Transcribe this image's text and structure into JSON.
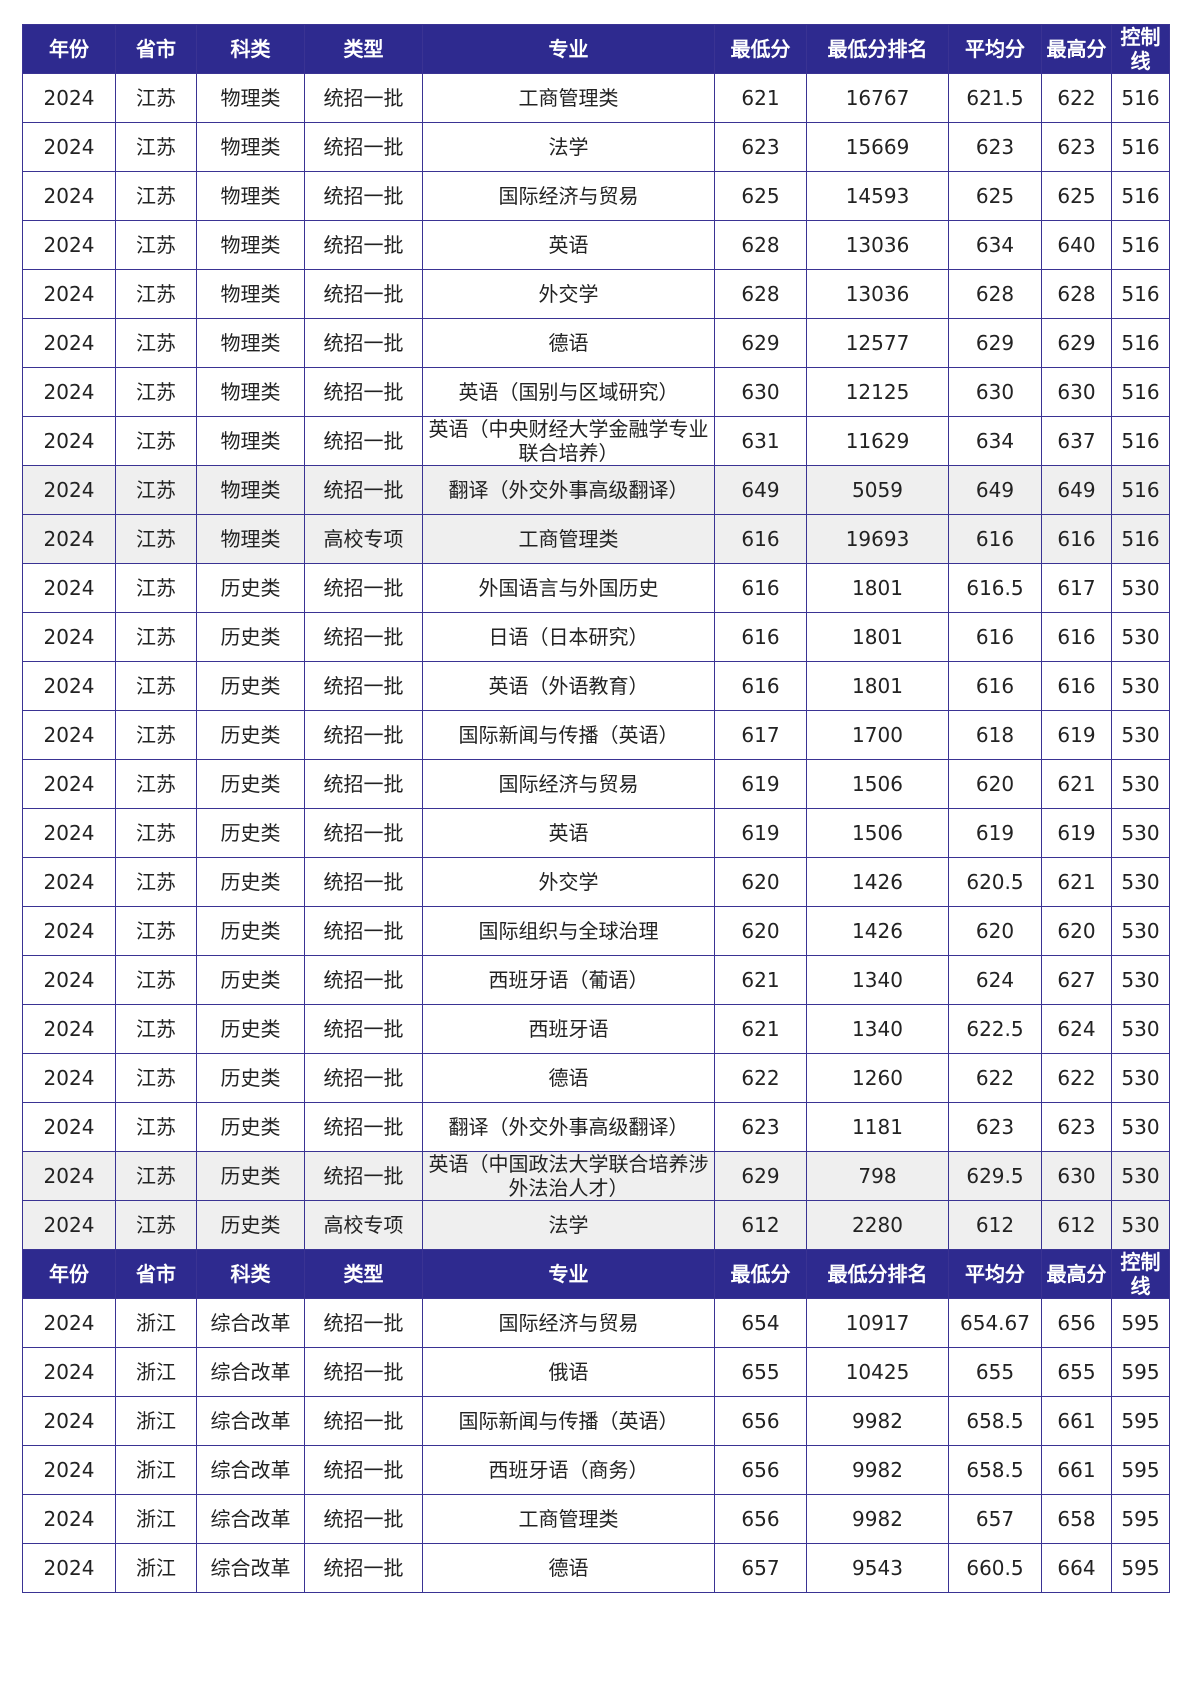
{
  "columns": [
    "年份",
    "省市",
    "科类",
    "类型",
    "专业",
    "最低分",
    "最低分排名",
    "平均分",
    "最高分",
    "控制线"
  ],
  "sections": [
    {
      "rows": [
        {
          "year": "2024",
          "province": "江苏",
          "subject": "物理类",
          "type": "统招一批",
          "major": "工商管理类",
          "min": "621",
          "rank": "16767",
          "avg": "621.5",
          "max": "622",
          "line": "516",
          "shaded": false
        },
        {
          "year": "2024",
          "province": "江苏",
          "subject": "物理类",
          "type": "统招一批",
          "major": "法学",
          "min": "623",
          "rank": "15669",
          "avg": "623",
          "max": "623",
          "line": "516",
          "shaded": false
        },
        {
          "year": "2024",
          "province": "江苏",
          "subject": "物理类",
          "type": "统招一批",
          "major": "国际经济与贸易",
          "min": "625",
          "rank": "14593",
          "avg": "625",
          "max": "625",
          "line": "516",
          "shaded": false
        },
        {
          "year": "2024",
          "province": "江苏",
          "subject": "物理类",
          "type": "统招一批",
          "major": "英语",
          "min": "628",
          "rank": "13036",
          "avg": "634",
          "max": "640",
          "line": "516",
          "shaded": false
        },
        {
          "year": "2024",
          "province": "江苏",
          "subject": "物理类",
          "type": "统招一批",
          "major": "外交学",
          "min": "628",
          "rank": "13036",
          "avg": "628",
          "max": "628",
          "line": "516",
          "shaded": false
        },
        {
          "year": "2024",
          "province": "江苏",
          "subject": "物理类",
          "type": "统招一批",
          "major": "德语",
          "min": "629",
          "rank": "12577",
          "avg": "629",
          "max": "629",
          "line": "516",
          "shaded": false
        },
        {
          "year": "2024",
          "province": "江苏",
          "subject": "物理类",
          "type": "统招一批",
          "major": "英语（国别与区域研究）",
          "min": "630",
          "rank": "12125",
          "avg": "630",
          "max": "630",
          "line": "516",
          "shaded": false
        },
        {
          "year": "2024",
          "province": "江苏",
          "subject": "物理类",
          "type": "统招一批",
          "major": "英语（中央财经大学金融学专业联合培养）",
          "min": "631",
          "rank": "11629",
          "avg": "634",
          "max": "637",
          "line": "516",
          "shaded": false
        },
        {
          "year": "2024",
          "province": "江苏",
          "subject": "物理类",
          "type": "统招一批",
          "major": "翻译（外交外事高级翻译）",
          "min": "649",
          "rank": "5059",
          "avg": "649",
          "max": "649",
          "line": "516",
          "shaded": true
        },
        {
          "year": "2024",
          "province": "江苏",
          "subject": "物理类",
          "type": "高校专项",
          "major": "工商管理类",
          "min": "616",
          "rank": "19693",
          "avg": "616",
          "max": "616",
          "line": "516",
          "shaded": true
        },
        {
          "year": "2024",
          "province": "江苏",
          "subject": "历史类",
          "type": "统招一批",
          "major": "外国语言与外国历史",
          "min": "616",
          "rank": "1801",
          "avg": "616.5",
          "max": "617",
          "line": "530",
          "shaded": false
        },
        {
          "year": "2024",
          "province": "江苏",
          "subject": "历史类",
          "type": "统招一批",
          "major": "日语（日本研究）",
          "min": "616",
          "rank": "1801",
          "avg": "616",
          "max": "616",
          "line": "530",
          "shaded": false
        },
        {
          "year": "2024",
          "province": "江苏",
          "subject": "历史类",
          "type": "统招一批",
          "major": "英语（外语教育）",
          "min": "616",
          "rank": "1801",
          "avg": "616",
          "max": "616",
          "line": "530",
          "shaded": false
        },
        {
          "year": "2024",
          "province": "江苏",
          "subject": "历史类",
          "type": "统招一批",
          "major": "国际新闻与传播（英语）",
          "min": "617",
          "rank": "1700",
          "avg": "618",
          "max": "619",
          "line": "530",
          "shaded": false
        },
        {
          "year": "2024",
          "province": "江苏",
          "subject": "历史类",
          "type": "统招一批",
          "major": "国际经济与贸易",
          "min": "619",
          "rank": "1506",
          "avg": "620",
          "max": "621",
          "line": "530",
          "shaded": false
        },
        {
          "year": "2024",
          "province": "江苏",
          "subject": "历史类",
          "type": "统招一批",
          "major": "英语",
          "min": "619",
          "rank": "1506",
          "avg": "619",
          "max": "619",
          "line": "530",
          "shaded": false
        },
        {
          "year": "2024",
          "province": "江苏",
          "subject": "历史类",
          "type": "统招一批",
          "major": "外交学",
          "min": "620",
          "rank": "1426",
          "avg": "620.5",
          "max": "621",
          "line": "530",
          "shaded": false
        },
        {
          "year": "2024",
          "province": "江苏",
          "subject": "历史类",
          "type": "统招一批",
          "major": "国际组织与全球治理",
          "min": "620",
          "rank": "1426",
          "avg": "620",
          "max": "620",
          "line": "530",
          "shaded": false
        },
        {
          "year": "2024",
          "province": "江苏",
          "subject": "历史类",
          "type": "统招一批",
          "major": "西班牙语（葡语）",
          "min": "621",
          "rank": "1340",
          "avg": "624",
          "max": "627",
          "line": "530",
          "shaded": false
        },
        {
          "year": "2024",
          "province": "江苏",
          "subject": "历史类",
          "type": "统招一批",
          "major": "西班牙语",
          "min": "621",
          "rank": "1340",
          "avg": "622.5",
          "max": "624",
          "line": "530",
          "shaded": false
        },
        {
          "year": "2024",
          "province": "江苏",
          "subject": "历史类",
          "type": "统招一批",
          "major": "德语",
          "min": "622",
          "rank": "1260",
          "avg": "622",
          "max": "622",
          "line": "530",
          "shaded": false
        },
        {
          "year": "2024",
          "province": "江苏",
          "subject": "历史类",
          "type": "统招一批",
          "major": "翻译（外交外事高级翻译）",
          "min": "623",
          "rank": "1181",
          "avg": "623",
          "max": "623",
          "line": "530",
          "shaded": false
        },
        {
          "year": "2024",
          "province": "江苏",
          "subject": "历史类",
          "type": "统招一批",
          "major": "英语（中国政法大学联合培养涉外法治人才）",
          "min": "629",
          "rank": "798",
          "avg": "629.5",
          "max": "630",
          "line": "530",
          "shaded": true
        },
        {
          "year": "2024",
          "province": "江苏",
          "subject": "历史类",
          "type": "高校专项",
          "major": "法学",
          "min": "612",
          "rank": "2280",
          "avg": "612",
          "max": "612",
          "line": "530",
          "shaded": true
        }
      ]
    },
    {
      "rows": [
        {
          "year": "2024",
          "province": "浙江",
          "subject": "综合改革",
          "type": "统招一批",
          "major": "国际经济与贸易",
          "min": "654",
          "rank": "10917",
          "avg": "654.67",
          "max": "656",
          "line": "595",
          "shaded": false
        },
        {
          "year": "2024",
          "province": "浙江",
          "subject": "综合改革",
          "type": "统招一批",
          "major": "俄语",
          "min": "655",
          "rank": "10425",
          "avg": "655",
          "max": "655",
          "line": "595",
          "shaded": false
        },
        {
          "year": "2024",
          "province": "浙江",
          "subject": "综合改革",
          "type": "统招一批",
          "major": "国际新闻与传播（英语）",
          "min": "656",
          "rank": "9982",
          "avg": "658.5",
          "max": "661",
          "line": "595",
          "shaded": false
        },
        {
          "year": "2024",
          "province": "浙江",
          "subject": "综合改革",
          "type": "统招一批",
          "major": "西班牙语（商务）",
          "min": "656",
          "rank": "9982",
          "avg": "658.5",
          "max": "661",
          "line": "595",
          "shaded": false
        },
        {
          "year": "2024",
          "province": "浙江",
          "subject": "综合改革",
          "type": "统招一批",
          "major": "工商管理类",
          "min": "656",
          "rank": "9982",
          "avg": "657",
          "max": "658",
          "line": "595",
          "shaded": false
        },
        {
          "year": "2024",
          "province": "浙江",
          "subject": "综合改革",
          "type": "统招一批",
          "major": "德语",
          "min": "657",
          "rank": "9543",
          "avg": "660.5",
          "max": "664",
          "line": "595",
          "shaded": false
        }
      ]
    }
  ]
}
